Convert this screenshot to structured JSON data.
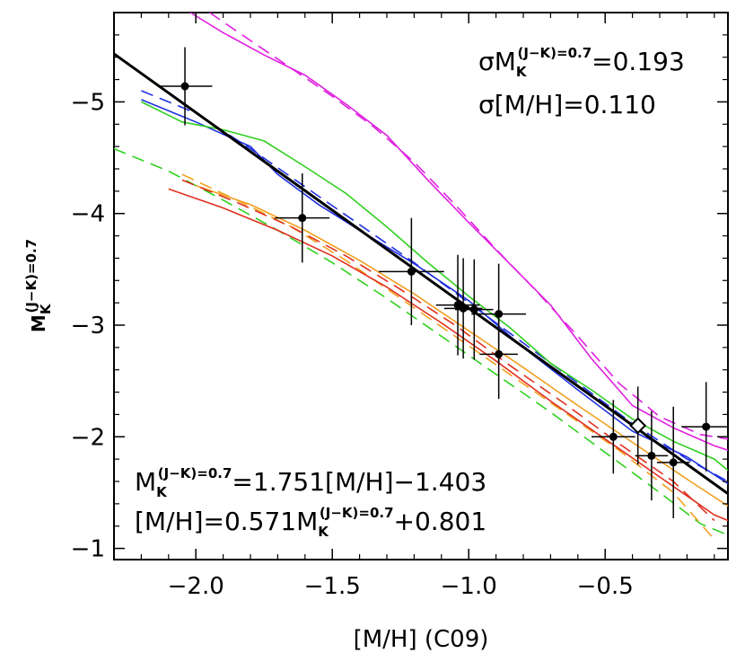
{
  "chart_data": {
    "type": "scatter",
    "title": "",
    "xlabel": "[M/H]  (C09)",
    "ylabel": {
      "base": "M",
      "sup": "(J−K)=0.7",
      "sub": "K"
    },
    "xlim": [
      -2.3,
      -0.05
    ],
    "ylim": [
      -0.9,
      -5.8
    ],
    "x_ticks": [
      -2.0,
      -1.5,
      -1.0,
      -0.5
    ],
    "x_tick_labels": [
      "−2.0",
      "−1.5",
      "−1.0",
      "−0.5"
    ],
    "y_ticks": [
      -5,
      -4,
      -3,
      -2,
      -1
    ],
    "y_tick_labels": [
      "−5",
      "−4",
      "−3",
      "−2",
      "−1"
    ],
    "fit_line": {
      "name": "fit",
      "color": "#000000",
      "slope": 1.751,
      "intercept": -1.403,
      "x_range": [
        -2.3,
        -0.05
      ]
    },
    "points": [
      {
        "x": -2.04,
        "y": -5.14,
        "xerr": 0.1,
        "yerr": 0.35
      },
      {
        "x": -1.61,
        "y": -3.96,
        "xerr": 0.1,
        "yerr": 0.4
      },
      {
        "x": -1.21,
        "y": -3.48,
        "xerr": 0.12,
        "yerr": 0.48
      },
      {
        "x": -1.04,
        "y": -3.18,
        "xerr": 0.08,
        "yerr": 0.45
      },
      {
        "x": -1.02,
        "y": -3.15,
        "xerr": 0.07,
        "yerr": 0.45
      },
      {
        "x": -0.98,
        "y": -3.14,
        "xerr": 0.07,
        "yerr": 0.45
      },
      {
        "x": -0.89,
        "y": -3.1,
        "xerr": 0.1,
        "yerr": 0.45
      },
      {
        "x": -0.89,
        "y": -2.74,
        "xerr": 0.07,
        "yerr": 0.4
      },
      {
        "x": -0.47,
        "y": -2.0,
        "xerr": 0.08,
        "yerr": 0.33
      },
      {
        "x": -0.33,
        "y": -1.83,
        "xerr": 0.06,
        "yerr": 0.4
      },
      {
        "x": -0.25,
        "y": -1.77,
        "xerr": 0.06,
        "yerr": 0.5
      },
      {
        "x": -0.13,
        "y": -2.09,
        "xerr": 0.09,
        "yerr": 0.4
      }
    ],
    "open_point": {
      "x": -0.38,
      "y": -2.1,
      "xerr": 0.03,
      "yerr": 0.35
    },
    "series": [
      {
        "name": "magenta-solid",
        "color": "#e020e0",
        "dash": "solid",
        "x": [
          -2.02,
          -1.9,
          -1.75,
          -1.6,
          -1.45,
          -1.3,
          -1.15,
          -1.0,
          -0.85,
          -0.7,
          -0.55,
          -0.4,
          -0.25,
          -0.1,
          -0.05
        ],
        "y": [
          -5.8,
          -5.62,
          -5.42,
          -5.24,
          -4.98,
          -4.7,
          -4.3,
          -3.92,
          -3.55,
          -3.18,
          -2.7,
          -2.28,
          -2.08,
          -1.92,
          -1.88
        ]
      },
      {
        "name": "magenta-dashed",
        "color": "#e020e0",
        "dash": "dashed",
        "x": [
          -1.95,
          -1.8,
          -1.65,
          -1.5,
          -1.35,
          -1.2,
          -1.05,
          -0.9,
          -0.75,
          -0.6,
          -0.45,
          -0.3,
          -0.15,
          -0.05
        ],
        "y": [
          -5.8,
          -5.55,
          -5.3,
          -5.05,
          -4.78,
          -4.46,
          -4.08,
          -3.68,
          -3.3,
          -2.9,
          -2.48,
          -2.18,
          -2.02,
          -1.98
        ]
      },
      {
        "name": "blue-solid",
        "color": "#2030e0",
        "dash": "solid",
        "x": [
          -2.2,
          -2.0,
          -1.8,
          -1.7,
          -1.55,
          -1.4,
          -1.2,
          -1.0,
          -0.8,
          -0.6,
          -0.4,
          -0.2,
          -0.05
        ],
        "y": [
          -5.02,
          -4.82,
          -4.6,
          -4.35,
          -4.08,
          -3.85,
          -3.55,
          -3.22,
          -2.8,
          -2.42,
          -2.05,
          -1.82,
          -1.58
        ]
      },
      {
        "name": "blue-dashed",
        "color": "#2030e0",
        "dash": "dashed",
        "x": [
          -2.2,
          -2.0,
          -1.8,
          -1.6,
          -1.4,
          -1.2,
          -1.0,
          -0.8,
          -0.6,
          -0.4,
          -0.2,
          -0.05
        ],
        "y": [
          -5.1,
          -4.9,
          -4.58,
          -4.24,
          -3.9,
          -3.56,
          -3.2,
          -2.84,
          -2.48,
          -2.12,
          -1.8,
          -1.6
        ]
      },
      {
        "name": "green-solid",
        "color": "#30d020",
        "dash": "solid",
        "x": [
          -2.2,
          -2.05,
          -1.9,
          -1.75,
          -1.6,
          -1.45,
          -1.3,
          -1.15,
          -1.0,
          -0.85,
          -0.7,
          -0.55,
          -0.4,
          -0.25,
          -0.1,
          -0.05
        ],
        "y": [
          -5.0,
          -4.82,
          -4.75,
          -4.65,
          -4.42,
          -4.18,
          -3.88,
          -3.56,
          -3.26,
          -2.98,
          -2.66,
          -2.42,
          -2.16,
          -1.96,
          -1.8,
          -1.7
        ]
      },
      {
        "name": "green-dashed",
        "color": "#30d020",
        "dash": "dashed",
        "x": [
          -2.3,
          -2.1,
          -1.9,
          -1.7,
          -1.5,
          -1.3,
          -1.1,
          -0.9,
          -0.7,
          -0.5,
          -0.3,
          -0.15,
          -0.05
        ],
        "y": [
          -4.58,
          -4.38,
          -4.12,
          -3.85,
          -3.56,
          -3.24,
          -2.9,
          -2.56,
          -2.22,
          -1.86,
          -1.5,
          -1.22,
          -1.12
        ]
      },
      {
        "name": "orange-solid",
        "color": "#f0a020",
        "dash": "solid",
        "x": [
          -2.0,
          -1.8,
          -1.6,
          -1.4,
          -1.2,
          -1.0,
          -0.8,
          -0.6,
          -0.4,
          -0.2,
          -0.05
        ],
        "y": [
          -4.25,
          -4.08,
          -3.85,
          -3.58,
          -3.28,
          -2.95,
          -2.62,
          -2.28,
          -1.95,
          -1.62,
          -1.38
        ]
      },
      {
        "name": "orange-dashed",
        "color": "#f0a020",
        "dash": "dashed",
        "x": [
          -2.05,
          -1.85,
          -1.65,
          -1.45,
          -1.25,
          -1.05,
          -0.85,
          -0.65,
          -0.45,
          -0.25,
          -0.1
        ],
        "y": [
          -4.35,
          -4.12,
          -3.88,
          -3.58,
          -3.24,
          -2.9,
          -2.56,
          -2.22,
          -1.88,
          -1.5,
          -1.08
        ]
      },
      {
        "name": "red-solid",
        "color": "#e03020",
        "dash": "solid",
        "x": [
          -2.1,
          -1.9,
          -1.7,
          -1.5,
          -1.3,
          -1.1,
          -0.9,
          -0.7,
          -0.5,
          -0.3,
          -0.1,
          -0.05
        ],
        "y": [
          -4.22,
          -4.05,
          -3.85,
          -3.62,
          -3.34,
          -3.02,
          -2.68,
          -2.32,
          -1.98,
          -1.64,
          -1.3,
          -1.25
        ]
      },
      {
        "name": "red-dashed",
        "color": "#e03020",
        "dash": "dashed",
        "x": [
          -2.05,
          -1.85,
          -1.65,
          -1.45,
          -1.25,
          -1.05,
          -0.85,
          -0.65,
          -0.45,
          -0.25,
          -0.1
        ],
        "y": [
          -4.3,
          -4.1,
          -3.88,
          -3.62,
          -3.32,
          -3.0,
          -2.64,
          -2.3,
          -1.94,
          -1.6,
          -1.25
        ]
      }
    ],
    "annotations": {
      "sigma_mk": {
        "prefix": "σM",
        "sup": "(J−K)=0.7",
        "sub": "K",
        "suffix": "=0.193"
      },
      "sigma_mh": {
        "text": "σ[M/H]=0.110"
      },
      "eq1": {
        "prefix": "M",
        "sup": "(J−K)=0.7",
        "sub": "K",
        "suffix": "=1.751[M/H]−1.403"
      },
      "eq2": {
        "prefix": "[M/H]=0.571M",
        "sup": "(J−K)=0.7",
        "sub": "K",
        "suffix": "+0.801"
      }
    }
  }
}
